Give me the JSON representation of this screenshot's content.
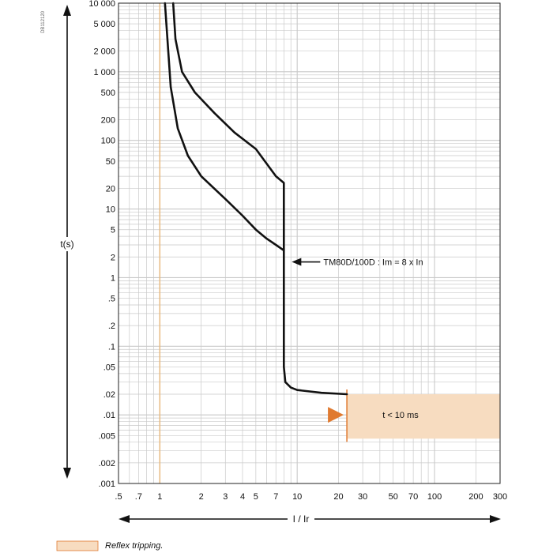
{
  "chart_data": {
    "type": "line",
    "scale": "log-log",
    "grid": true,
    "code": "DB112120",
    "xlabel": "I / Ir",
    "ylabel": "t(s)",
    "xlim": [
      0.5,
      300
    ],
    "ylim": [
      0.001,
      10000
    ],
    "x_ticks": [
      {
        "v": 0.5,
        "label": ".5"
      },
      {
        "v": 0.7,
        "label": ".7"
      },
      {
        "v": 1,
        "label": "1"
      },
      {
        "v": 2,
        "label": "2"
      },
      {
        "v": 3,
        "label": "3"
      },
      {
        "v": 4,
        "label": "4"
      },
      {
        "v": 5,
        "label": "5"
      },
      {
        "v": 7,
        "label": "7"
      },
      {
        "v": 10,
        "label": "10"
      },
      {
        "v": 20,
        "label": "20"
      },
      {
        "v": 30,
        "label": "30"
      },
      {
        "v": 50,
        "label": "50"
      },
      {
        "v": 70,
        "label": "70"
      },
      {
        "v": 100,
        "label": "100"
      },
      {
        "v": 200,
        "label": "200"
      },
      {
        "v": 300,
        "label": "300"
      }
    ],
    "y_ticks": [
      {
        "v": 10000,
        "label": "10 000"
      },
      {
        "v": 5000,
        "label": "5 000"
      },
      {
        "v": 2000,
        "label": "2 000"
      },
      {
        "v": 1000,
        "label": "1 000"
      },
      {
        "v": 500,
        "label": "500"
      },
      {
        "v": 200,
        "label": "200"
      },
      {
        "v": 100,
        "label": "100"
      },
      {
        "v": 50,
        "label": "50"
      },
      {
        "v": 20,
        "label": "20"
      },
      {
        "v": 10,
        "label": "10"
      },
      {
        "v": 5,
        "label": "5"
      },
      {
        "v": 2,
        "label": "2"
      },
      {
        "v": 1,
        "label": "1"
      },
      {
        "v": 0.5,
        "label": ".5"
      },
      {
        "v": 0.2,
        "label": ".2"
      },
      {
        "v": 0.1,
        "label": ".1"
      },
      {
        "v": 0.05,
        "label": ".05"
      },
      {
        "v": 0.02,
        "label": ".02"
      },
      {
        "v": 0.01,
        "label": ".01"
      },
      {
        "v": 0.005,
        "label": ".005"
      },
      {
        "v": 0.002,
        "label": ".002"
      },
      {
        "v": 0.001,
        "label": ".001"
      }
    ],
    "reference_line_x": 1,
    "series": [
      {
        "points": [
          [
            1.09,
            10000
          ],
          [
            1.2,
            600
          ],
          [
            1.35,
            150
          ],
          [
            1.6,
            60
          ],
          [
            2,
            30
          ],
          [
            3,
            14
          ],
          [
            4,
            8
          ],
          [
            5,
            5
          ],
          [
            6,
            3.7
          ],
          [
            7,
            3
          ],
          [
            8,
            2.5
          ],
          [
            8,
            1
          ],
          [
            8,
            0.1
          ],
          [
            8,
            0.05
          ],
          [
            8.2,
            0.03
          ],
          [
            9,
            0.025
          ],
          [
            10,
            0.023
          ],
          [
            15,
            0.021
          ],
          [
            23,
            0.02
          ]
        ]
      },
      {
        "points": [
          [
            1.25,
            10000
          ],
          [
            1.3,
            3000
          ],
          [
            1.45,
            1000
          ],
          [
            1.8,
            500
          ],
          [
            2.5,
            250
          ],
          [
            3.5,
            130
          ],
          [
            5,
            75
          ],
          [
            7,
            30
          ],
          [
            8,
            24
          ],
          [
            8,
            2.5
          ]
        ]
      }
    ],
    "annotations": [
      {
        "text": "TM80D/100D : Im = 8 x In",
        "x": 8,
        "y": 1.2
      },
      {
        "text": "t < 10 ms",
        "x": 60,
        "y": 0.01
      }
    ],
    "reflex_region": {
      "x": [
        23,
        300
      ],
      "y": [
        0.0045,
        0.02
      ]
    },
    "legend": {
      "label": "Reflex tripping.",
      "placement": "bottom-left"
    },
    "colors": {
      "curve": "#111111",
      "grid": "#c9c9c9",
      "reflex_fill": "#f7dcc0",
      "reflex_edge": "#e07a30",
      "reference_line": "#e8b87a"
    }
  }
}
